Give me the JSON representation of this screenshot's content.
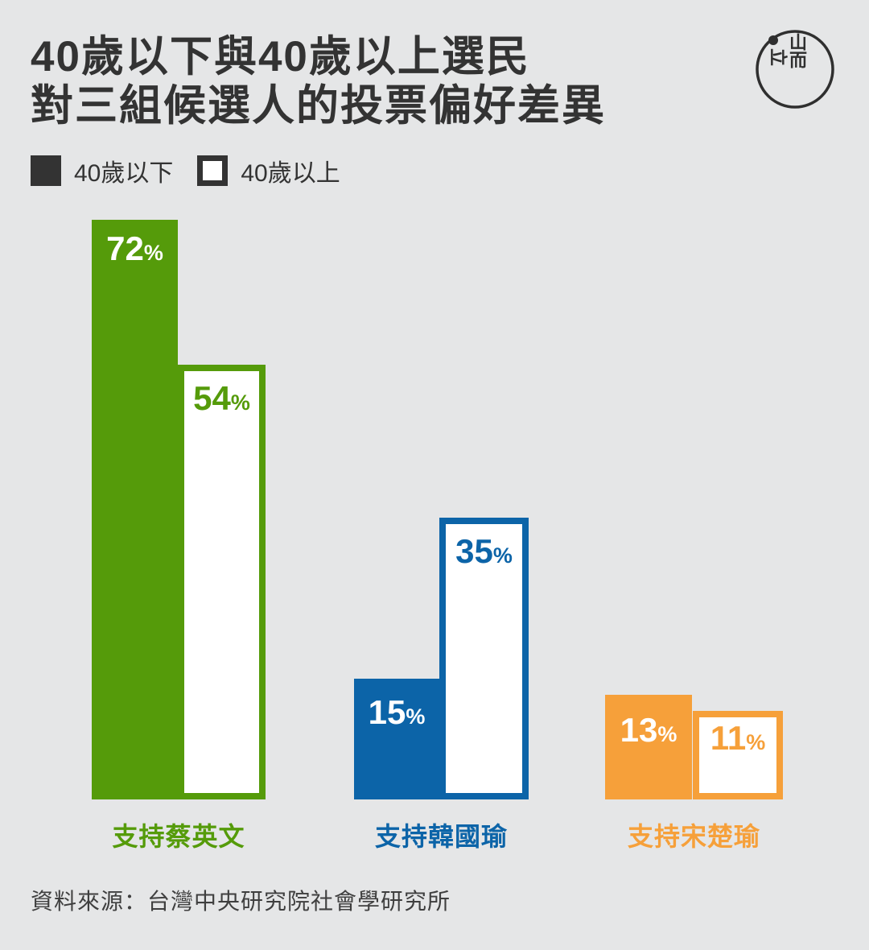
{
  "title": {
    "line1": "40歲以下與40歲以上選民",
    "line2": "對三組候選人的投票偏好差異"
  },
  "logo": {
    "glyphs": {
      "left": "立",
      "top_right": "山",
      "bottom_right": "而"
    }
  },
  "legend": {
    "items": [
      {
        "label": "40歲以下",
        "swatch": "filled-dark"
      },
      {
        "label": "40歲以上",
        "swatch": "white-outlined"
      }
    ]
  },
  "chart_data": {
    "type": "bar",
    "categories": [
      "支持蔡英文",
      "支持韓國瑜",
      "支持宋楚瑜"
    ],
    "series": [
      {
        "name": "40歲以下",
        "style": "filled",
        "values": [
          72,
          15,
          13
        ]
      },
      {
        "name": "40歲以上",
        "style": "outlined",
        "values": [
          54,
          35,
          11
        ]
      }
    ],
    "unit": "%",
    "value_range": [
      0,
      100
    ],
    "group_colors": [
      "#559b0a",
      "#0c64a8",
      "#f6a03a"
    ],
    "grid": false,
    "axes_hidden": true,
    "legend_position": "top-left"
  },
  "source": "資料來源：台灣中央研究院社會學研究所",
  "colors": {
    "background": "#e5e6e7",
    "ink": "#333333",
    "green": "#559b0a",
    "blue": "#0c64a8",
    "orange": "#f6a03a",
    "source_text": "#3f3f3f"
  }
}
